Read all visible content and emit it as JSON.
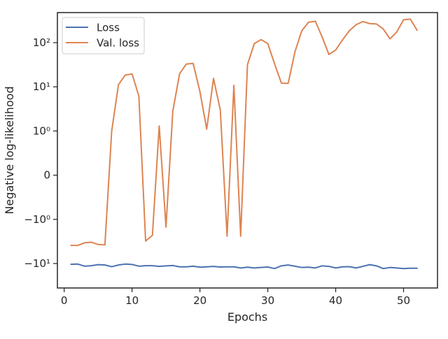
{
  "chart_data": {
    "type": "line",
    "title": "",
    "xlabel": "Epochs",
    "ylabel": "Negative log-likelihood",
    "yscale": "symlog",
    "xlim": [
      -1,
      55
    ],
    "x_ticks": [
      0,
      10,
      20,
      30,
      40,
      50
    ],
    "x_tick_labels": [
      "0",
      "10",
      "20",
      "30",
      "40",
      "50"
    ],
    "y_ticks": [
      -10,
      -1,
      0,
      1,
      10,
      100
    ],
    "y_tick_labels": [
      "−10¹",
      "−10⁰",
      "0",
      "10⁰",
      "10¹",
      "10²"
    ],
    "grid": false,
    "legend_position": "top-left",
    "x": [
      1,
      2,
      3,
      4,
      5,
      6,
      7,
      8,
      9,
      10,
      11,
      12,
      13,
      14,
      15,
      16,
      17,
      18,
      19,
      20,
      21,
      22,
      23,
      24,
      25,
      26,
      27,
      28,
      29,
      30,
      31,
      32,
      33,
      34,
      35,
      36,
      37,
      38,
      39,
      40,
      41,
      42,
      43,
      44,
      45,
      46,
      47,
      48,
      49,
      50,
      51,
      52
    ],
    "series": [
      {
        "name": "Loss",
        "color": "#4c72b0",
        "values": [
          -10.4,
          -10.3,
          -11.5,
          -11.2,
          -10.6,
          -10.8,
          -11.8,
          -10.8,
          -10.3,
          -10.5,
          -11.5,
          -11.2,
          -11.2,
          -11.6,
          -11.3,
          -11.1,
          -11.9,
          -11.9,
          -11.5,
          -12.1,
          -11.9,
          -11.6,
          -12.0,
          -11.9,
          -11.9,
          -12.6,
          -12.1,
          -12.6,
          -12.3,
          -12.0,
          -13.0,
          -11.3,
          -10.8,
          -11.5,
          -12.3,
          -12.1,
          -12.6,
          -11.3,
          -11.6,
          -12.6,
          -11.9,
          -11.8,
          -12.6,
          -11.6,
          -10.6,
          -11.3,
          -13.0,
          -12.3,
          -12.6,
          -13.0,
          -12.8,
          -12.8
        ]
      },
      {
        "name": "Val. loss",
        "color": "#dd8452",
        "values": [
          -3.9,
          -3.9,
          -3.4,
          -3.3,
          -3.7,
          -3.8,
          1.0,
          11.2,
          18.5,
          19.5,
          6.2,
          -3.1,
          -2.3,
          1.3,
          -1.5,
          2.8,
          19.8,
          32.8,
          33.8,
          7.8,
          1.1,
          15.5,
          3.0,
          -2.4,
          10.8,
          -2.4,
          31.5,
          95,
          117,
          95,
          33,
          12.1,
          12.0,
          62,
          185,
          290,
          305,
          135,
          54,
          68,
          115,
          185,
          255,
          300,
          270,
          265,
          205,
          122,
          175,
          330,
          340,
          190
        ]
      }
    ]
  }
}
